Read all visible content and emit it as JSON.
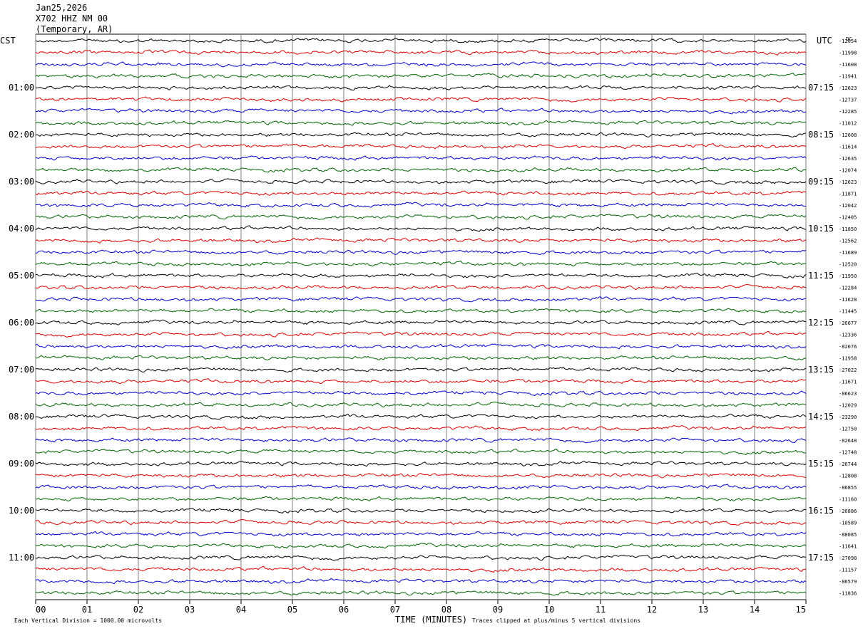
{
  "header": {
    "date": "Jan25,2026",
    "station": "X702 HHZ NM 00",
    "network": "(Temporary, AR)"
  },
  "labels": {
    "left_tz": "CST",
    "right_tz": "UTC",
    "corner": "DC",
    "footer_left": "Each Vertical Division = 1000.00 microvolts",
    "footer_center": "TIME (MINUTES)",
    "footer_right": "Traces clipped at plus/minus 5 vertical divisions"
  },
  "colors": {
    "trace_cycle": [
      "#000000",
      "#dd0000",
      "#0000cc",
      "#006600"
    ],
    "grid": "#808080"
  },
  "chart_data": {
    "type": "line",
    "xlabel": "TIME (MINUTES)",
    "xlim": [
      0,
      15
    ],
    "x_ticks": [
      "00",
      "01",
      "02",
      "03",
      "04",
      "05",
      "06",
      "07",
      "08",
      "09",
      "10",
      "11",
      "12",
      "13",
      "14",
      "15"
    ],
    "rows": 48,
    "left_time_labels": [
      {
        "row": 4,
        "label": "01:00"
      },
      {
        "row": 8,
        "label": "02:00"
      },
      {
        "row": 12,
        "label": "03:00"
      },
      {
        "row": 16,
        "label": "04:00"
      },
      {
        "row": 20,
        "label": "05:00"
      },
      {
        "row": 24,
        "label": "06:00"
      },
      {
        "row": 28,
        "label": "07:00"
      },
      {
        "row": 32,
        "label": "08:00"
      },
      {
        "row": 36,
        "label": "09:00"
      },
      {
        "row": 40,
        "label": "10:00"
      },
      {
        "row": 44,
        "label": "11:00"
      }
    ],
    "right_time_labels": [
      {
        "row": 4,
        "label": "07:15"
      },
      {
        "row": 8,
        "label": "08:15"
      },
      {
        "row": 12,
        "label": "09:15"
      },
      {
        "row": 16,
        "label": "10:15"
      },
      {
        "row": 20,
        "label": "11:15"
      },
      {
        "row": 24,
        "label": "12:15"
      },
      {
        "row": 28,
        "label": "13:15"
      },
      {
        "row": 32,
        "label": "14:15"
      },
      {
        "row": 36,
        "label": "15:15"
      },
      {
        "row": 40,
        "label": "16:15"
      },
      {
        "row": 44,
        "label": "17:15"
      }
    ],
    "trace_offsets": [
      "-12854",
      "-11998",
      "-11608",
      "-11941",
      "-12623",
      "-12737",
      "-12285",
      "-11012",
      "-12608",
      "-11614",
      "-12635",
      "-12074",
      "-12623",
      "-11871",
      "-12042",
      "-12405",
      "-11850",
      "-12562",
      "-11689",
      "-12520",
      "-11950",
      "-12284",
      "-11628",
      "-11445",
      "-26677",
      "-12336",
      "-82076",
      "-11958",
      "-27022",
      "-11671",
      "-86623",
      "-12029",
      "-23290",
      "-12750",
      "-82648",
      "-12748",
      "-26744",
      "-12808",
      "-86855",
      "-11160",
      "-26886",
      "-10589",
      "-88085",
      "-11641",
      "-27098",
      "-11157",
      "-86579",
      "-11836"
    ]
  }
}
